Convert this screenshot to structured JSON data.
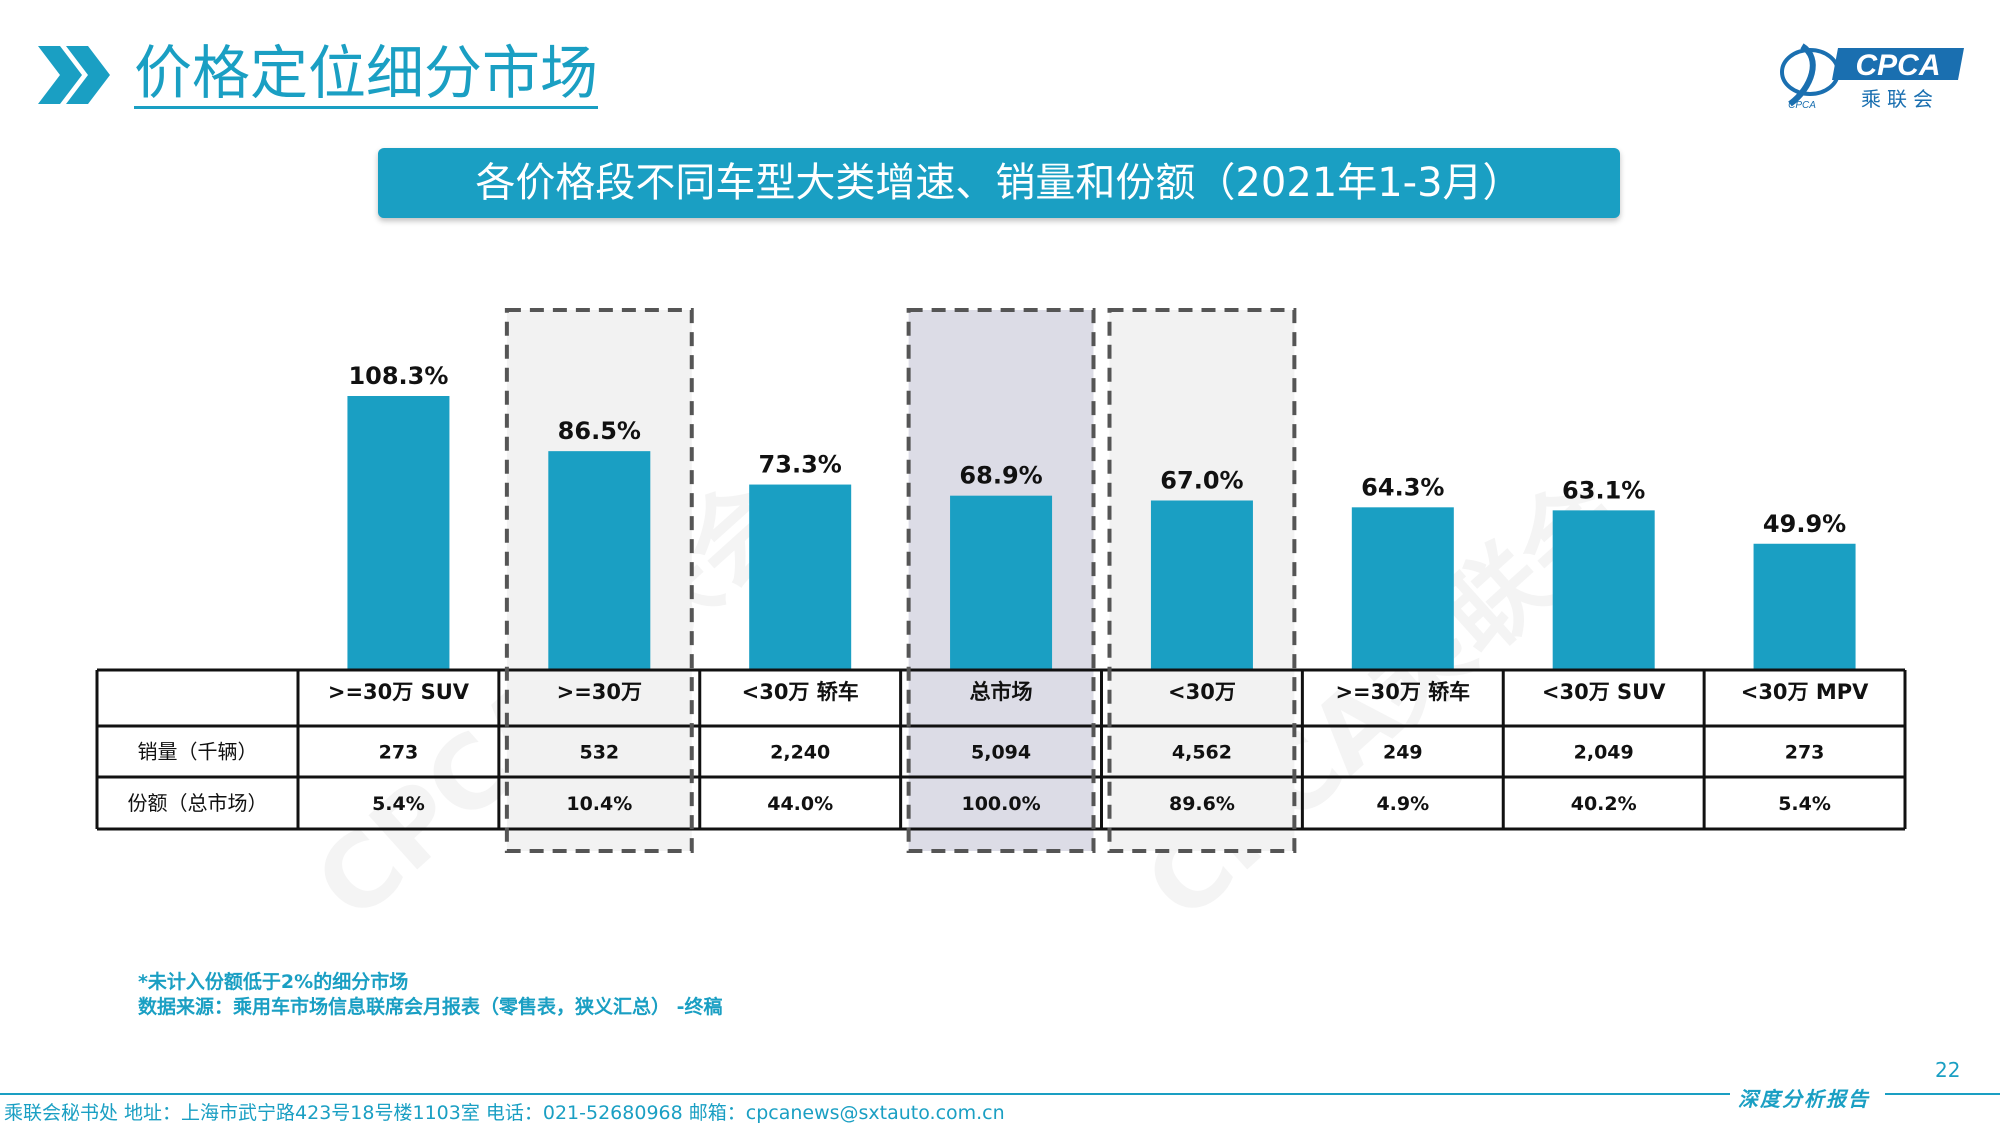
{
  "header": {
    "title": "价格定位细分市场",
    "subtitle": "各价格段不同车型大类增速、销量和份额（2021年1-3月）",
    "logo_text": "CPCA",
    "logo_cn": "乘联会",
    "logo_mark": "CPCA",
    "watermark": "CPCA乘联会"
  },
  "chart_data": {
    "type": "bar",
    "categories": [
      ">=30万 SUV",
      ">=30万",
      "<30万 轿车",
      "总市场",
      "<30万",
      ">=30万 轿车",
      "<30万 SUV",
      "<30万 MPV"
    ],
    "values": [
      108.3,
      86.5,
      73.3,
      68.9,
      67.0,
      64.3,
      63.1,
      49.9
    ],
    "value_labels": [
      "108.3%",
      "86.5%",
      "73.3%",
      "68.9%",
      "67.0%",
      "64.3%",
      "63.1%",
      "49.9%"
    ],
    "bar_color": "#1a9fc3",
    "highlighted": [
      1,
      3,
      4
    ],
    "table": {
      "row_headers": [
        "销量（千辆）",
        "份额（总市场）"
      ],
      "rows": [
        [
          "273",
          "532",
          "2,240",
          "5,094",
          "4,562",
          "249",
          "2,049",
          "273"
        ],
        [
          "5.4%",
          "10.4%",
          "44.0%",
          "100.0%",
          "89.6%",
          "4.9%",
          "40.2%",
          "5.4%"
        ]
      ]
    }
  },
  "notes": {
    "line1": "*未计入份额低于2%的细分市场",
    "line2": "数据来源：乘用车市场信息联席会月报表（零售表，狭义汇总） -终稿"
  },
  "footer": {
    "page_number": "22",
    "contact": "乘联会秘书处   地址：上海市武宁路423号18号楼1103室  电话：021-52680968   邮箱：cpcanews@sxtauto.com.cn",
    "report_tag": "深度分析报告"
  },
  "colors": {
    "accent": "#1a9fc3",
    "highlight_grey": "#f2f2f2",
    "highlight_dark": "#dcdce6"
  }
}
